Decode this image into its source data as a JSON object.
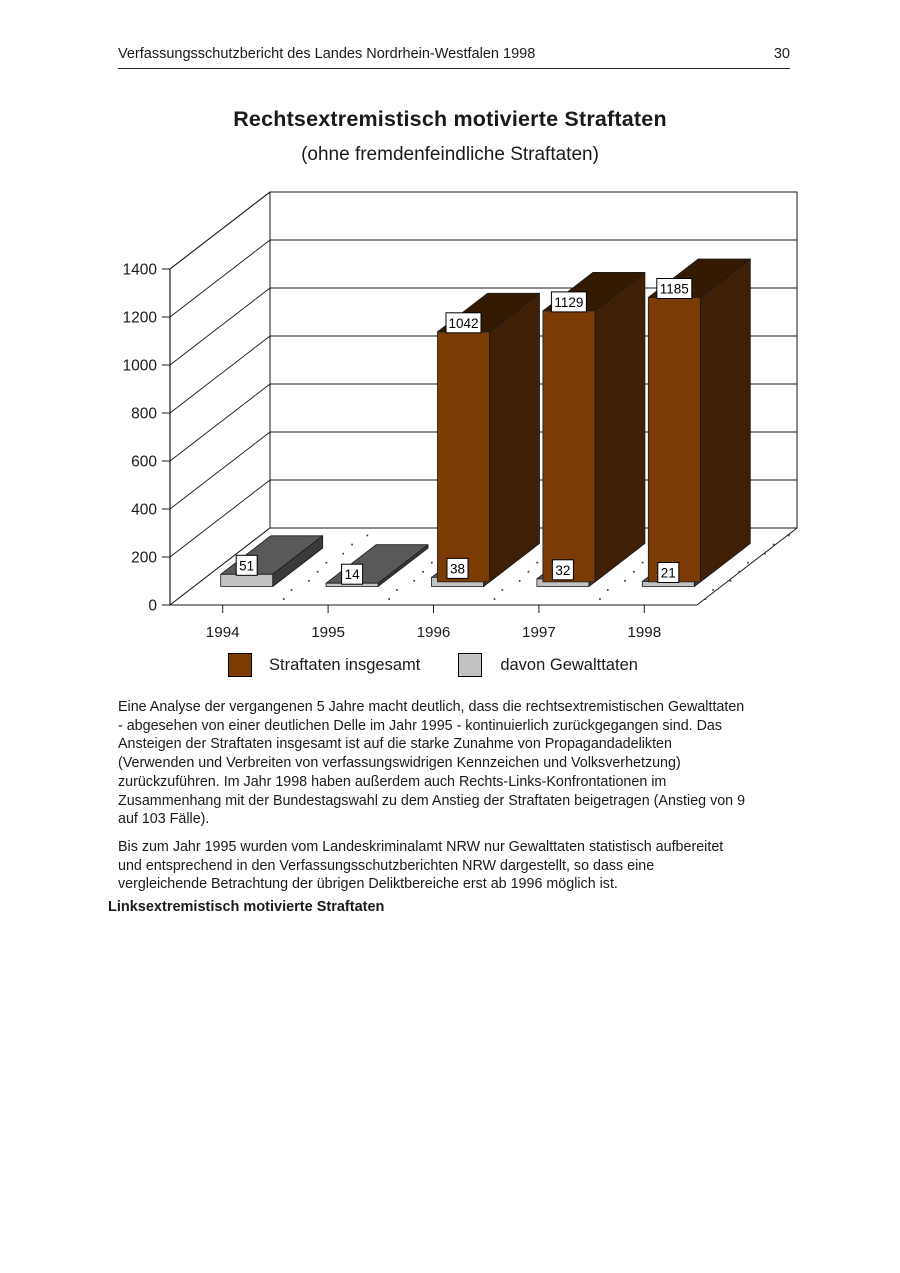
{
  "header": {
    "title": "Verfassungsschutzbericht des Landes Nordrhein-Westfalen 1998",
    "page_number": "30"
  },
  "chart_data": {
    "type": "bar",
    "style": "3d-column",
    "title": "Rechtsextremistisch motivierte Straftaten",
    "subtitle": "(ohne fremdenfeindliche Straftaten)",
    "categories": [
      "1994",
      "1995",
      "1996",
      "1997",
      "1998"
    ],
    "series": [
      {
        "name": "Straftaten insgesamt",
        "color": "#7b3b05",
        "color_top": "#351a02",
        "color_side": "#3f1f05",
        "values": [
          null,
          null,
          1042,
          1129,
          1185
        ]
      },
      {
        "name": "davon Gewalttaten",
        "color": "#c2c2c2",
        "color_top": "#595959",
        "color_side": "#3a3a3a",
        "values": [
          51,
          14,
          38,
          32,
          21
        ]
      }
    ],
    "ylim": [
      0,
      1400
    ],
    "ytick_step": 200,
    "grid": true,
    "data_labels": true,
    "legend_position": "bottom",
    "axis_color": "#1a1a1a",
    "label_box_bg": "#ffffff"
  },
  "body": {
    "paragraph1": "Eine Analyse der vergangenen 5 Jahre macht deutlich, dass die rechtsextremistischen Gewalttaten\n- abgesehen von einer deutlichen Delle im Jahr 1995 - kontinuierlich zurückgegangen sind. Das\nAnsteigen der Straftaten insgesamt ist auf die starke Zunahme von Propagandadelikten\n(Verwenden und Verbreiten von verfassungswidrigen Kennzeichen und Volksverhetzung)\nzurückzuführen. Im Jahr 1998 haben außerdem auch Rechts-Links-Konfrontationen im\nZusammenhang mit der Bundestagswahl zu dem Anstieg der Straftaten beigetragen (Anstieg von 9\nauf 103 Fälle).",
    "paragraph2": "Bis zum Jahr 1995 wurden vom Landeskriminalamt NRW nur Gewalttaten statistisch aufbereitet\nund entsprechend in den Verfassungsschutzberichten NRW dargestellt, so dass eine\nvergleichende Betrachtung der übrigen Deliktbereiche erst ab 1996 möglich ist.",
    "heading": "Linksextremistisch motivierte Straftaten"
  }
}
